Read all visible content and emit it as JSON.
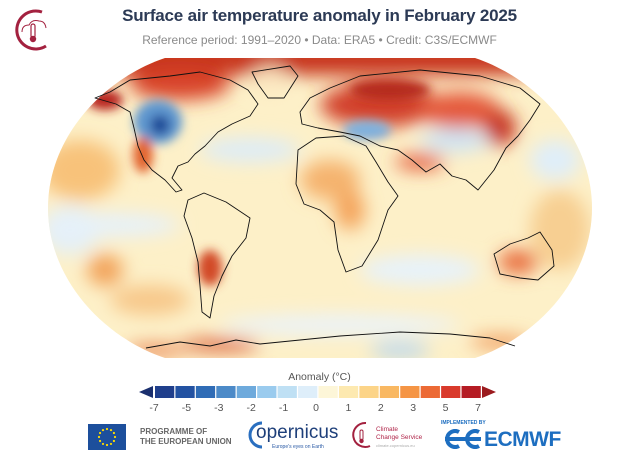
{
  "header": {
    "title": "Surface air temperature anomaly in February 2025",
    "subtitle": "Reference period: 1991–2020 • Data: ERA5 • Credit: C3S/ECMWF",
    "logo_icon": "climate-thermometer-cloud-icon"
  },
  "map": {
    "projection": "Robinson",
    "variable": "Surface air temperature anomaly",
    "coastline_color": "#000000"
  },
  "colorbar": {
    "title": "Anomaly (°C)",
    "tick_labels": [
      "-7",
      "-5",
      "-3",
      "-2",
      "-1",
      "0",
      "1",
      "2",
      "3",
      "5",
      "7"
    ],
    "colors": [
      "#203f8c",
      "#2352a2",
      "#2f6cb6",
      "#4c8ac8",
      "#6eaadc",
      "#9acbee",
      "#bfe0f4",
      "#deeefa",
      "#fdf6d8",
      "#fde9b0",
      "#fcd488",
      "#f9b862",
      "#f59545",
      "#ec6a35",
      "#d93a2c",
      "#b51c24"
    ],
    "under_color": "#1a2f6e",
    "over_color": "#9b1b1e"
  },
  "footer": {
    "eu_line1": "PROGRAMME OF",
    "eu_line2": "THE EUROPEAN UNION",
    "copernicus": "opernicus",
    "copernicus_tagline": "Europe's eyes on Earth",
    "ccs_line1": "Climate",
    "ccs_line2": "Change Service",
    "ccs_url": "climate.copernicus.eu",
    "ecmwf_top": "IMPLEMENTED BY",
    "ecmwf": "ECMWF"
  }
}
